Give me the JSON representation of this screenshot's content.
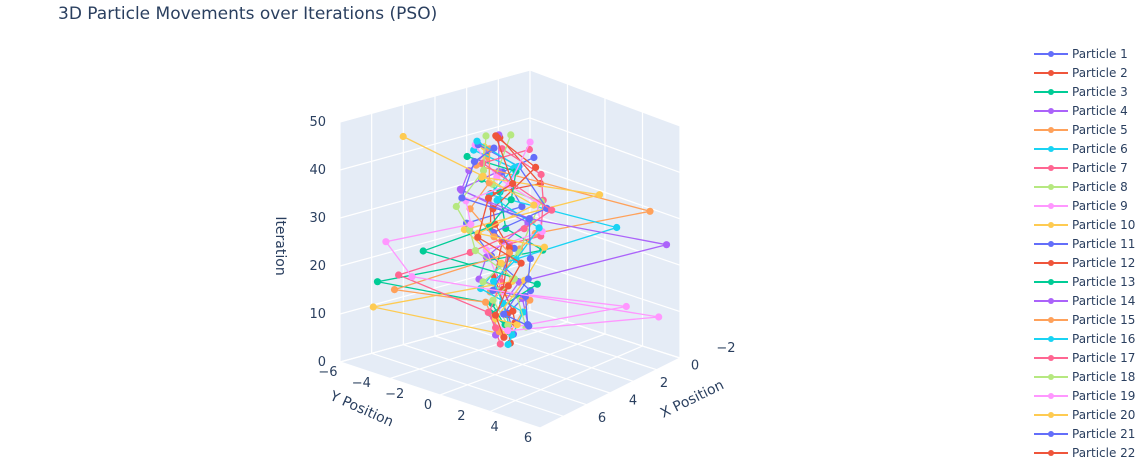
{
  "chart_data": {
    "type": "scatter3d-lines",
    "title": "3D Particle Movements over Iterations (PSO)",
    "axes": {
      "x": {
        "label": "X Position",
        "ticks": [
          "−2",
          "0",
          "2",
          "4",
          "6"
        ],
        "range": [
          -2,
          7
        ]
      },
      "y": {
        "label": "Y Position",
        "ticks": [
          "−6",
          "−4",
          "−2",
          "0",
          "2",
          "4",
          "6"
        ],
        "range": [
          -6,
          7
        ]
      },
      "z": {
        "label": "Iteration",
        "ticks": [
          "0",
          "10",
          "20",
          "30",
          "40",
          "50"
        ],
        "range": [
          0,
          50
        ]
      }
    },
    "legend_placement": "right",
    "colors": [
      "#636efa",
      "#EF553B",
      "#00cc96",
      "#ab63fa",
      "#FFA15A",
      "#19d3f3",
      "#FF6692",
      "#B6E880",
      "#FF97FF",
      "#FECB52"
    ],
    "series": [
      {
        "name": "Particle 1"
      },
      {
        "name": "Particle 2"
      },
      {
        "name": "Particle 3"
      },
      {
        "name": "Particle 4"
      },
      {
        "name": "Particle 5"
      },
      {
        "name": "Particle 6"
      },
      {
        "name": "Particle 7"
      },
      {
        "name": "Particle 8"
      },
      {
        "name": "Particle 9"
      },
      {
        "name": "Particle 10"
      },
      {
        "name": "Particle 11"
      },
      {
        "name": "Particle 12"
      },
      {
        "name": "Particle 13"
      },
      {
        "name": "Particle 14"
      },
      {
        "name": "Particle 15"
      },
      {
        "name": "Particle 16"
      },
      {
        "name": "Particle 17"
      },
      {
        "name": "Particle 18"
      },
      {
        "name": "Particle 19"
      },
      {
        "name": "Particle 20"
      },
      {
        "name": "Particle 21"
      },
      {
        "name": "Particle 22"
      }
    ],
    "grid": true
  }
}
